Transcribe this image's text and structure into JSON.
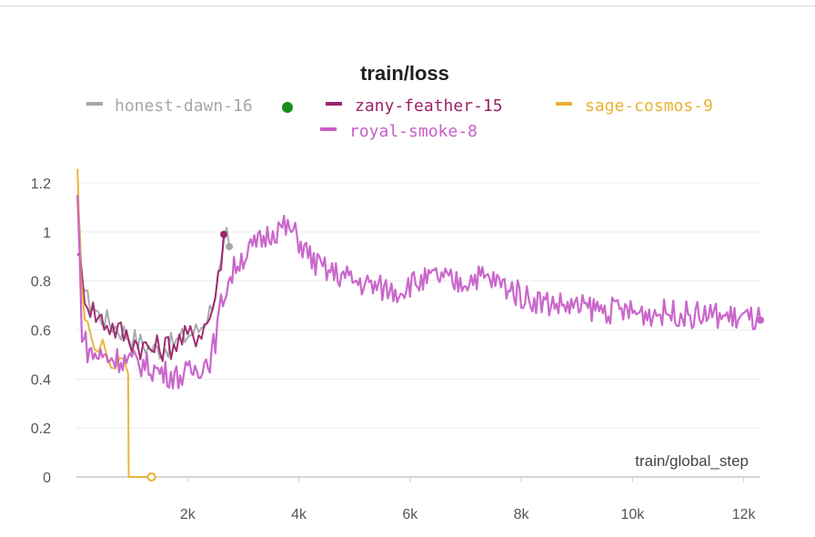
{
  "chart_data": {
    "type": "line",
    "title": "train/loss",
    "xlabel": "train/global_step",
    "ylabel": "",
    "xlim": [
      0,
      12300
    ],
    "ylim": [
      0,
      1.3
    ],
    "x_ticks": [
      2000,
      4000,
      6000,
      8000,
      10000,
      12000
    ],
    "x_tick_labels": [
      "2k",
      "4k",
      "6k",
      "8k",
      "10k",
      "12k"
    ],
    "y_ticks": [
      0,
      0.2,
      0.4,
      0.6,
      0.8,
      1,
      1.2
    ],
    "y_tick_labels": [
      "0",
      "0.2",
      "0.4",
      "0.6",
      "0.8",
      "1",
      "1.2"
    ],
    "grid": "horizontal",
    "legend_position": "top",
    "series": [
      {
        "name": "honest-dawn-16",
        "color": "#a3a6ad",
        "status": "running",
        "status_color": "#1a8c1a",
        "x": [
          20,
          100,
          200,
          300,
          400,
          600,
          800,
          1000,
          1200,
          1400,
          1600,
          1800,
          2000,
          2200,
          2400,
          2600,
          2700,
          2750
        ],
        "y": [
          1.1,
          0.82,
          0.72,
          0.7,
          0.66,
          0.63,
          0.6,
          0.57,
          0.54,
          0.52,
          0.53,
          0.55,
          0.58,
          0.6,
          0.68,
          0.85,
          0.98,
          0.94
        ]
      },
      {
        "name": "zany-feather-15",
        "color": "#9c2468",
        "x": [
          20,
          100,
          200,
          300,
          400,
          600,
          800,
          1000,
          1200,
          1400,
          1600,
          1800,
          2000,
          2200,
          2400,
          2550,
          2650
        ],
        "y": [
          0.95,
          0.8,
          0.72,
          0.68,
          0.65,
          0.62,
          0.59,
          0.56,
          0.53,
          0.52,
          0.53,
          0.55,
          0.57,
          0.59,
          0.65,
          0.8,
          0.99
        ]
      },
      {
        "name": "sage-cosmos-9",
        "color": "#e8b230",
        "x": [
          20,
          80,
          150,
          250,
          400,
          550,
          700,
          850,
          930,
          940,
          1050,
          1200,
          1350
        ],
        "y": [
          1.27,
          0.8,
          0.65,
          0.58,
          0.54,
          0.5,
          0.46,
          0.44,
          0.42,
          0,
          0,
          0,
          0
        ]
      },
      {
        "name": "royal-smoke-8",
        "color": "#c75fc9",
        "x": [
          20,
          100,
          200,
          300,
          500,
          800,
          1000,
          1200,
          1500,
          1800,
          2000,
          2200,
          2400,
          2500,
          2600,
          2700,
          2900,
          3100,
          3300,
          3500,
          3700,
          3900,
          4100,
          4300,
          4500,
          4800,
          5000,
          5300,
          5500,
          5800,
          6000,
          6300,
          6500,
          6800,
          7000,
          7200,
          7500,
          7800,
          8000,
          8300,
          8500,
          8800,
          9000,
          9300,
          9500,
          9800,
          10000,
          10300,
          10500,
          10800,
          11000,
          11300,
          11500,
          11800,
          12000,
          12300
        ],
        "y": [
          1.14,
          0.6,
          0.52,
          0.5,
          0.49,
          0.48,
          0.47,
          0.46,
          0.43,
          0.41,
          0.42,
          0.45,
          0.48,
          0.56,
          0.7,
          0.78,
          0.88,
          0.92,
          0.96,
          1.0,
          1.02,
          1.0,
          0.93,
          0.87,
          0.84,
          0.82,
          0.8,
          0.78,
          0.77,
          0.76,
          0.79,
          0.8,
          0.82,
          0.79,
          0.8,
          0.82,
          0.8,
          0.77,
          0.74,
          0.72,
          0.71,
          0.7,
          0.69,
          0.69,
          0.68,
          0.68,
          0.67,
          0.67,
          0.67,
          0.67,
          0.66,
          0.66,
          0.66,
          0.65,
          0.65,
          0.64
        ]
      }
    ]
  }
}
